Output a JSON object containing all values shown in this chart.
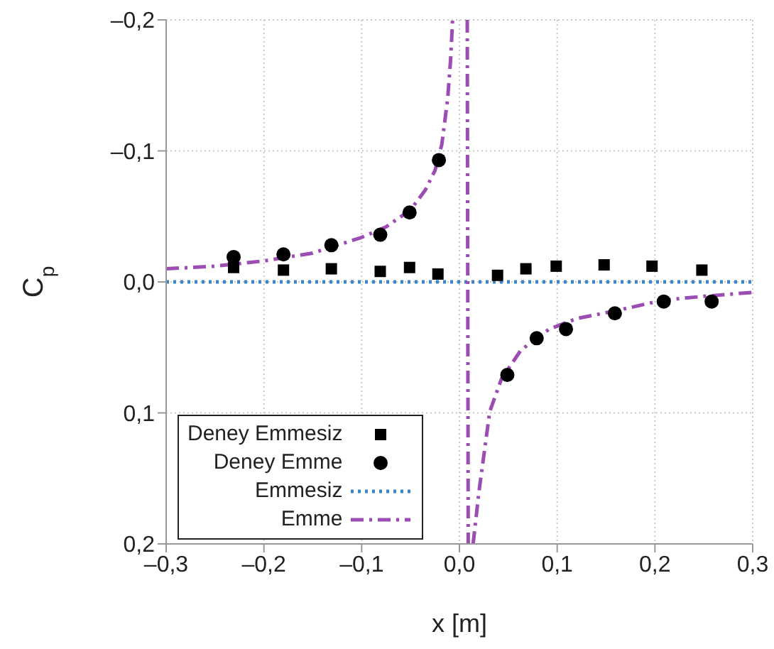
{
  "chart_data": {
    "type": "scatter",
    "xlabel": "x [m]",
    "ylabel": "C$_{p}$",
    "xlim": [
      -0.3,
      0.3
    ],
    "xticks": [
      {
        "value": -0.3,
        "label": "–0,3"
      },
      {
        "value": -0.2,
        "label": "–0,2"
      },
      {
        "value": -0.1,
        "label": "–0,1"
      },
      {
        "value": 0,
        "label": "0,0"
      },
      {
        "value": 0.1,
        "label": "0,1"
      },
      {
        "value": 0.2,
        "label": "0,2"
      },
      {
        "value": 0.3,
        "label": "0,3"
      }
    ],
    "ylim": [
      0.2,
      -0.2
    ],
    "yticks": [
      {
        "value": -0.2,
        "label": "–0,2"
      },
      {
        "value": -0.1,
        "label": "–0,1"
      },
      {
        "value": 0,
        "label": "0,0"
      },
      {
        "value": 0.1,
        "label": "0,1"
      },
      {
        "value": 0.2,
        "label": "0,2"
      }
    ],
    "grid": true,
    "legend": "bottom left",
    "series": [
      {
        "name": "Deney Emmesiz",
        "marker": "square",
        "color": "#000000",
        "x": [
          -0.231,
          -0.18,
          -0.131,
          -0.081,
          -0.051,
          -0.022,
          0.039,
          0.068,
          0.099,
          0.148,
          0.197,
          0.248
        ],
        "values": [
          -0.011,
          -0.009,
          -0.01,
          -0.008,
          -0.011,
          -0.006,
          -0.005,
          -0.01,
          -0.012,
          -0.013,
          -0.012,
          -0.009
        ]
      },
      {
        "name": "Deney Emme",
        "marker": "circle",
        "color": "#000000",
        "x": [
          -0.231,
          -0.18,
          -0.131,
          -0.081,
          -0.051,
          -0.021,
          0.049,
          0.079,
          0.109,
          0.159,
          0.209,
          0.258
        ],
        "values": [
          -0.019,
          -0.021,
          -0.028,
          -0.036,
          -0.053,
          -0.093,
          0.071,
          0.043,
          0.036,
          0.024,
          0.015,
          0.015
        ]
      },
      {
        "name": "Emmesiz",
        "type": "line",
        "marker": "none",
        "line_style": "dotted",
        "color": "#3d85c6",
        "x": [
          -0.3,
          0.3
        ],
        "values": [
          0,
          0
        ]
      },
      {
        "name": "Emme",
        "type": "line",
        "marker": "none",
        "line_style": "dashed",
        "color": "#9b4db3",
        "x": [
          -0.3,
          -0.25,
          -0.2,
          -0.15,
          -0.1,
          -0.075,
          -0.05,
          -0.035,
          -0.025,
          -0.018,
          -0.012,
          -0.009,
          -0.007,
          0,
          0.008,
          0.009,
          0.011,
          0.014,
          0.02,
          0.031,
          0.043,
          0.063,
          0.092,
          0.12,
          0.16,
          0.208,
          0.25,
          0.3
        ],
        "values": [
          -0.01,
          -0.012,
          -0.016,
          -0.022,
          -0.034,
          -0.042,
          -0.055,
          -0.07,
          -0.085,
          -0.105,
          -0.14,
          -0.17,
          -0.2,
          null,
          -0.2,
          0.2,
          null,
          0.2,
          0.16,
          0.099,
          0.074,
          0.052,
          0.036,
          0.028,
          0.022,
          0.014,
          0.011,
          0.008
        ]
      }
    ]
  }
}
